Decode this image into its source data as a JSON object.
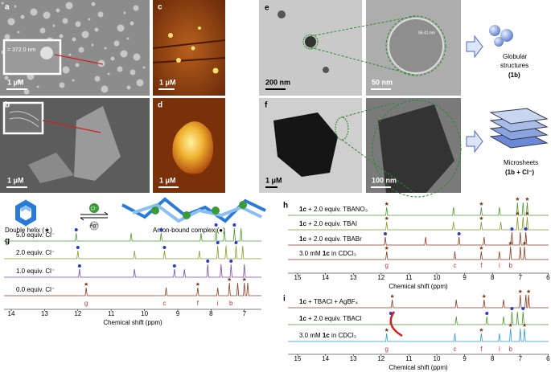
{
  "panels": {
    "a": {
      "label": "a",
      "scale_bar": "1 μM",
      "inset_measure": "= 372.0 nm"
    },
    "b": {
      "label": "b",
      "scale_bar": "1 μM"
    },
    "c": {
      "label": "c",
      "scale_bar": "1 μM"
    },
    "d": {
      "label": "d",
      "scale_bar": "1 μM"
    },
    "e": {
      "label": "e",
      "scale_bar": "200 nm",
      "zoom_scale_bar": "50 nm",
      "zoom_measure": "95.41 nm"
    },
    "f": {
      "label": "f",
      "scale_bar": "1 μM",
      "zoom_scale_bar": "100 nm"
    }
  },
  "morphology": {
    "globular": {
      "name_1": "Globular",
      "name_2": "structures",
      "compound": "(1b)"
    },
    "microsheets": {
      "name_1": "Microsheets",
      "compound": "(1b + Cl⁻)"
    }
  },
  "scheme": {
    "double_helix": "Double helix (★)",
    "anion_complex": "Anion-bound complex (●)",
    "anion": "Cl⁻",
    "cation": "Ag⁺"
  },
  "nmr": {
    "g": {
      "label": "g",
      "traces": [
        "5.0 equiv. Cl⁻",
        "2.0 equiv. Cl⁻",
        "1.0 equiv. Cl⁻",
        "0.0 equiv. Cl⁻"
      ],
      "peak_labels": [
        "g",
        "c",
        "f",
        "i",
        "b"
      ],
      "x_ticks": [
        14,
        13,
        12,
        11,
        10,
        9,
        8,
        7
      ],
      "x_label": "Chemical shift (ppm)"
    },
    "h": {
      "label": "h",
      "traces": [
        {
          "compound": "1c",
          "rest": " + 2.0 equiv. TBANO₃"
        },
        {
          "compound": "1c",
          "rest": " + 2.0 equiv. TBAI"
        },
        {
          "compound": "1c",
          "rest": " + 2.0 equiv. TBABr"
        },
        {
          "prefix": "3.0 mM ",
          "compound": "1c",
          "rest": " in CDCl₃"
        }
      ],
      "peak_labels": [
        "g",
        "c",
        "f",
        "i",
        "b"
      ],
      "x_ticks": [
        15,
        14,
        13,
        12,
        11,
        10,
        9,
        8,
        7,
        6
      ],
      "x_label": "Chemical shift (ppm)"
    },
    "i": {
      "label": "i",
      "traces": [
        {
          "compound": "1c",
          "rest": " + TBACl + AgBF₄"
        },
        {
          "compound": "1c",
          "rest": " + 2.0 equiv. TBACl"
        },
        {
          "prefix": "3.0 mM ",
          "compound": "1c",
          "rest": " in CDCl₃"
        }
      ],
      "peak_labels": [
        "g",
        "c",
        "f",
        "i",
        "b"
      ],
      "x_ticks": [
        15,
        14,
        13,
        12,
        11,
        10,
        9,
        8,
        7,
        6
      ],
      "x_label": "Chemical shift (ppm)"
    }
  }
}
